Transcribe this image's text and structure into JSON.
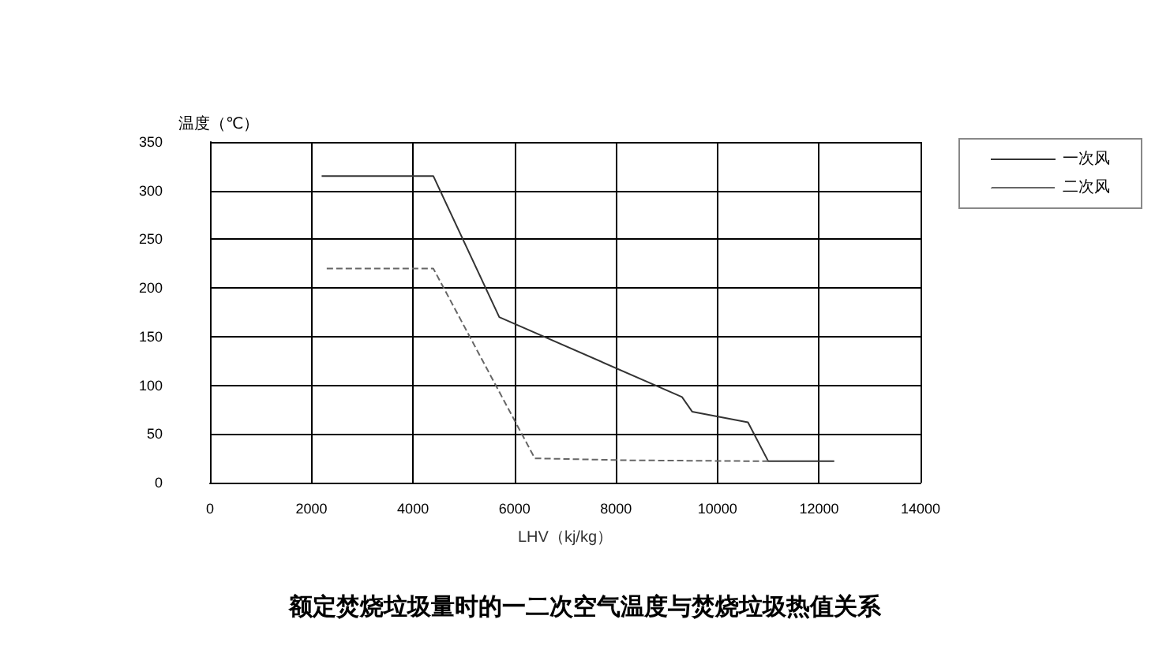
{
  "chart_data": {
    "type": "line",
    "title": "额定焚烧垃圾量时的一二次空气温度与焚烧垃圾热值关系",
    "xlabel": "LHV（kj/kg）",
    "ylabel": "温度（℃）",
    "xlim": [
      0,
      14000
    ],
    "xticks": [
      0,
      2000,
      4000,
      6000,
      8000,
      10000,
      12000,
      14000
    ],
    "ylim": [
      0,
      350
    ],
    "yticks": [
      0,
      50,
      100,
      150,
      200,
      250,
      300,
      350
    ],
    "grid": true,
    "legend": "top right",
    "marker": "none",
    "series": [
      {
        "name": "一次风",
        "color": "#333333",
        "line_style": "solid",
        "x": [
          2200,
          4400,
          5700,
          9300,
          9500,
          10600,
          11000,
          12300
        ],
        "values": [
          315,
          315,
          170,
          88,
          73,
          62,
          22,
          22
        ]
      },
      {
        "name": "二次风",
        "color": "#666666",
        "line_style": "dashed",
        "x": [
          2300,
          4400,
          6400,
          8200,
          11000
        ],
        "values": [
          220,
          220,
          25,
          23,
          22
        ]
      }
    ]
  }
}
